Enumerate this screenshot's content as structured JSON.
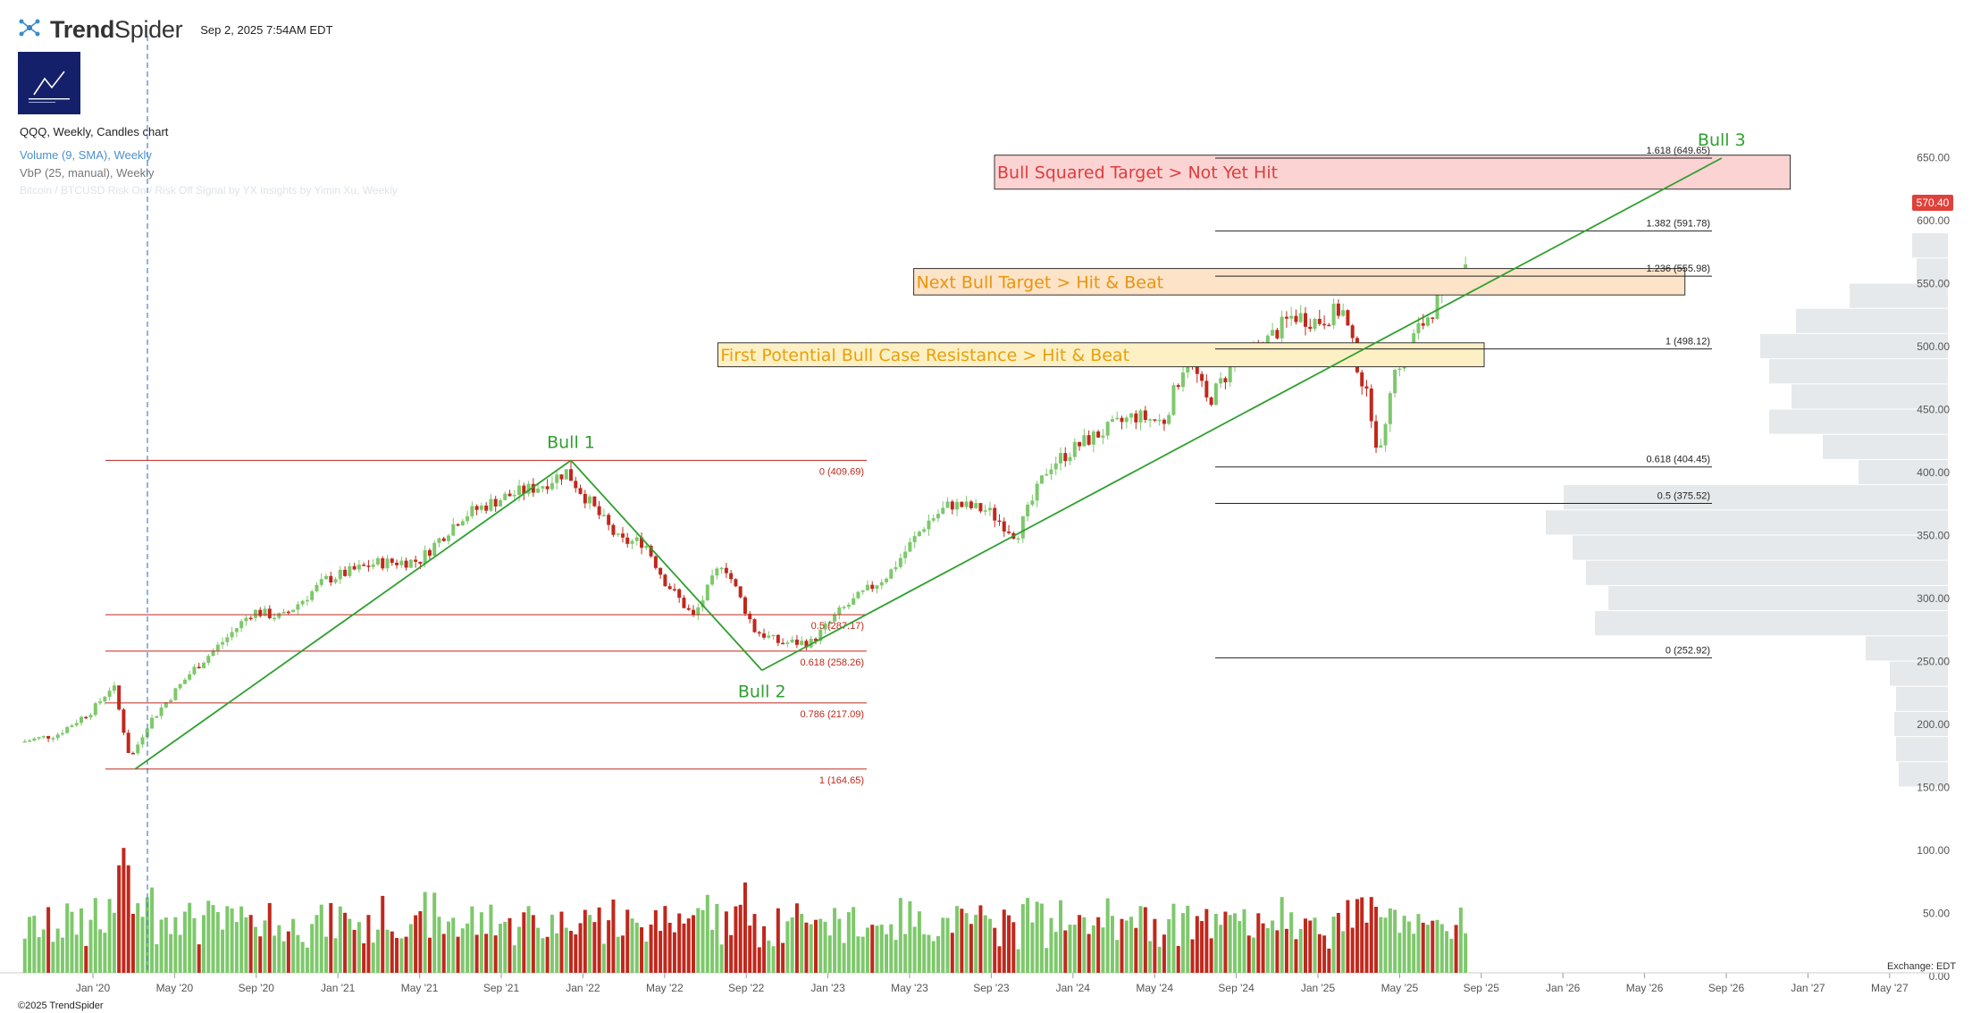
{
  "header": {
    "brand_bold": "Trend",
    "brand_rest": "Spider",
    "timestamp": "Sep 2, 2025 7:54AM EDT"
  },
  "legend": {
    "symbol": "QQQ, Weekly, Candles chart",
    "volume": "Volume (9, SMA), Weekly",
    "vbp": "VbP (25, manual), Weekly",
    "faded": "Bitcoin / BTCUSD Risk On / Risk Off Signal by YX Insights by Yimin Xu, Weekly"
  },
  "price_tag": "570.40",
  "exchange": "Exchange: EDT",
  "copyright": "©2025 TrendSpider",
  "colors": {
    "up": "#7ec86c",
    "down": "#c0281c",
    "trend": "#2fa02f",
    "fib_red": "#c0281c",
    "vbp": "#e6e9eb"
  },
  "chart_data": {
    "type": "candlestick",
    "symbol": "QQQ",
    "interval": "Weekly",
    "y_ticks": [
      "0.00",
      "50.00",
      "100.00",
      "150.00",
      "200.00",
      "250.00",
      "300.00",
      "350.00",
      "400.00",
      "450.00",
      "500.00",
      "550.00",
      "600.00",
      "650.00"
    ],
    "x_ticks": [
      "Jan '20",
      "May '20",
      "Sep '20",
      "Jan '21",
      "May '21",
      "Sep '21",
      "Jan '22",
      "May '22",
      "Sep '22",
      "Jan '23",
      "May '23",
      "Sep '23",
      "Jan '24",
      "May '24",
      "Sep '24",
      "Jan '25",
      "May '25",
      "Sep '25",
      "Jan '26",
      "May '26",
      "Sep '26",
      "Jan '27",
      "May '27"
    ],
    "price_anchors": [
      [
        2019.75,
        186
      ],
      [
        2019.9,
        192
      ],
      [
        2020.05,
        212
      ],
      [
        2020.13,
        232
      ],
      [
        2020.2,
        172
      ],
      [
        2020.27,
        200
      ],
      [
        2020.45,
        242
      ],
      [
        2020.6,
        270
      ],
      [
        2020.7,
        290
      ],
      [
        2020.82,
        285
      ],
      [
        2021.0,
        315
      ],
      [
        2021.2,
        328
      ],
      [
        2021.38,
        330
      ],
      [
        2021.55,
        365
      ],
      [
        2021.72,
        380
      ],
      [
        2021.88,
        390
      ],
      [
        2021.98,
        401
      ],
      [
        2022.1,
        370
      ],
      [
        2022.2,
        345
      ],
      [
        2022.3,
        345
      ],
      [
        2022.38,
        315
      ],
      [
        2022.5,
        285
      ],
      [
        2022.62,
        330
      ],
      [
        2022.75,
        275
      ],
      [
        2022.85,
        265
      ],
      [
        2022.98,
        265
      ],
      [
        2023.1,
        290
      ],
      [
        2023.3,
        320
      ],
      [
        2023.45,
        360
      ],
      [
        2023.55,
        375
      ],
      [
        2023.7,
        370
      ],
      [
        2023.82,
        350
      ],
      [
        2023.95,
        405
      ],
      [
        2024.1,
        425
      ],
      [
        2024.3,
        445
      ],
      [
        2024.42,
        440
      ],
      [
        2024.52,
        495
      ],
      [
        2024.6,
        455
      ],
      [
        2024.7,
        485
      ],
      [
        2024.82,
        500
      ],
      [
        2024.95,
        525
      ],
      [
        2025.05,
        520
      ],
      [
        2025.15,
        530
      ],
      [
        2025.22,
        480
      ],
      [
        2025.28,
        440
      ],
      [
        2025.3,
        405
      ],
      [
        2025.35,
        475
      ],
      [
        2025.45,
        510
      ],
      [
        2025.52,
        530
      ],
      [
        2025.58,
        550
      ],
      [
        2025.62,
        560
      ],
      [
        2025.67,
        570
      ]
    ],
    "trend_lines": [
      {
        "label": "Bull 1",
        "from": [
          2020.22,
          164.65
        ],
        "to": [
          2022.0,
          409.69
        ]
      },
      {
        "label": "Bull 2",
        "from": [
          2022.0,
          409.69
        ],
        "to": [
          2022.78,
          243
        ]
      },
      {
        "label": "Bull 3",
        "from": [
          2022.78,
          243
        ],
        "to": [
          2026.7,
          649.65
        ]
      }
    ],
    "fib_left": [
      {
        "label": "0 (409.69)",
        "value": 409.69
      },
      {
        "label": "0.5 (287.17)",
        "value": 287.17
      },
      {
        "label": "0.618 (258.26)",
        "value": 258.26
      },
      {
        "label": "0.786 (217.09)",
        "value": 217.09
      },
      {
        "label": "1 (164.65)",
        "value": 164.65
      }
    ],
    "fib_right": [
      {
        "label": "1.618 (649.65)",
        "value": 649.65
      },
      {
        "label": "1.382 (591.78)",
        "value": 591.78
      },
      {
        "label": "1.236 (555.98)",
        "value": 555.98
      },
      {
        "label": "1 (498.12)",
        "value": 498.12
      },
      {
        "label": "0.618 (404.45)",
        "value": 404.45
      },
      {
        "label": "0.5 (375.52)",
        "value": 375.52
      },
      {
        "label": "0 (252.92)",
        "value": 252.92
      }
    ],
    "zones": [
      {
        "label": "Bull Squared Target > Not Yet Hit",
        "from_t": 2023.73,
        "to_t": 2026.98,
        "lo": 625,
        "hi": 652,
        "color": "#e03c3c",
        "fill": "#fbd3d3"
      },
      {
        "label": "Next Bull Target > Hit & Beat",
        "from_t": 2023.4,
        "to_t": 2026.55,
        "lo": 541,
        "hi": 562,
        "color": "#e8950e",
        "fill": "#fde3c7"
      },
      {
        "label": "First Potential Bull Case Resistance > Hit & Beat",
        "from_t": 2022.6,
        "to_t": 2025.73,
        "lo": 484,
        "hi": 503,
        "color": "#e8a00e",
        "fill": "#fdf0c4"
      }
    ],
    "vbp_profile": [
      [
        150,
        170,
        55
      ],
      [
        170,
        190,
        58
      ],
      [
        190,
        210,
        60
      ],
      [
        210,
        230,
        58
      ],
      [
        230,
        250,
        65
      ],
      [
        250,
        270,
        92
      ],
      [
        270,
        290,
        395
      ],
      [
        290,
        310,
        380
      ],
      [
        310,
        330,
        405
      ],
      [
        330,
        350,
        420
      ],
      [
        350,
        370,
        450
      ],
      [
        370,
        390,
        430
      ],
      [
        390,
        410,
        100
      ],
      [
        410,
        430,
        140
      ],
      [
        430,
        450,
        200
      ],
      [
        450,
        470,
        175
      ],
      [
        470,
        490,
        200
      ],
      [
        490,
        510,
        210
      ],
      [
        510,
        530,
        170
      ],
      [
        530,
        550,
        110
      ],
      [
        550,
        570,
        35
      ],
      [
        570,
        590,
        40
      ]
    ]
  }
}
